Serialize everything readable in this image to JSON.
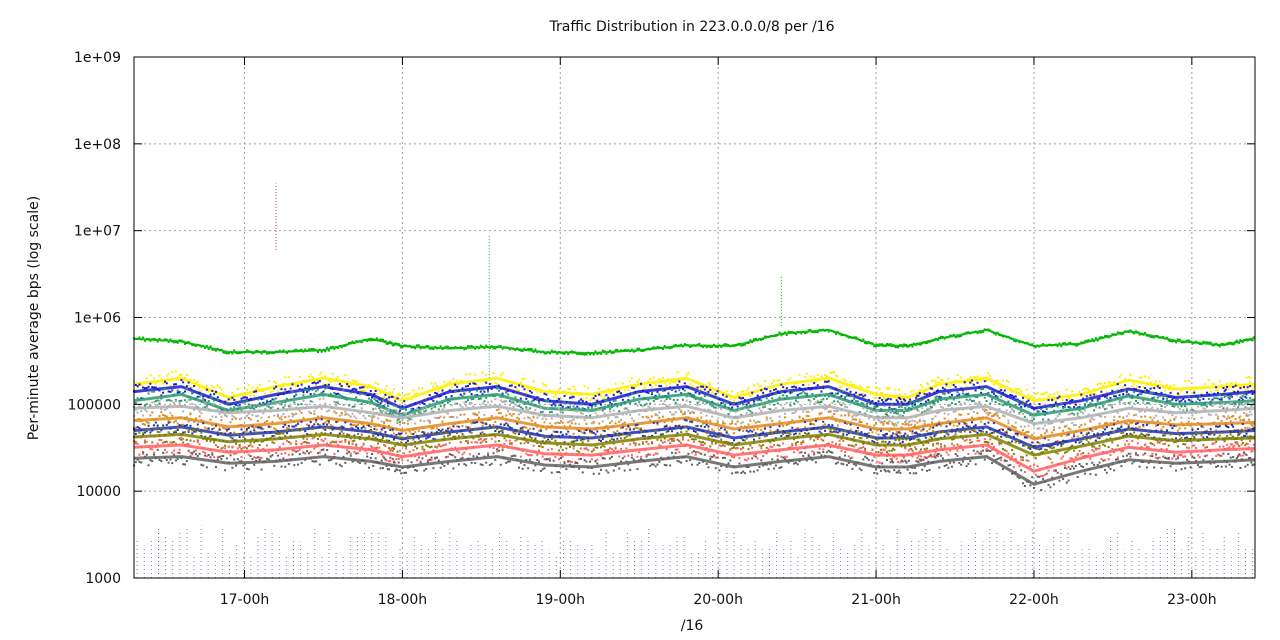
{
  "chart_data": {
    "type": "scatter",
    "title": "Traffic Distribution in 223.0.0.0/8 per /16",
    "xlabel": "/16",
    "ylabel": "Per-minute average bps (log scale)",
    "y_scale": "log",
    "ylim": [
      1000,
      1000000000
    ],
    "y_ticks": [
      "1000",
      "10000",
      "100000",
      "1e+06",
      "1e+07",
      "1e+08",
      "1e+09"
    ],
    "x_unit": "hour",
    "xlim": [
      16.3,
      23.4
    ],
    "x_ticks": [
      {
        "value": 17,
        "label": "17-00h"
      },
      {
        "value": 18,
        "label": "18-00h"
      },
      {
        "value": 19,
        "label": "19-00h"
      },
      {
        "value": 20,
        "label": "20-00h"
      },
      {
        "value": 21,
        "label": "21-00h"
      },
      {
        "value": 22,
        "label": "22-00h"
      },
      {
        "value": 23,
        "label": "23-00h"
      }
    ],
    "grid": true,
    "legend": "none",
    "series": [
      {
        "color": "#00b400",
        "values": [
          [
            16.3,
            570000
          ],
          [
            16.6,
            530000
          ],
          [
            16.9,
            400000
          ],
          [
            17.2,
            400000
          ],
          [
            17.5,
            420000
          ],
          [
            17.8,
            570000
          ],
          [
            18.0,
            470000
          ],
          [
            18.3,
            440000
          ],
          [
            18.6,
            460000
          ],
          [
            18.9,
            400000
          ],
          [
            19.2,
            390000
          ],
          [
            19.5,
            420000
          ],
          [
            19.8,
            480000
          ],
          [
            20.1,
            470000
          ],
          [
            20.4,
            650000
          ],
          [
            20.7,
            720000
          ],
          [
            21.0,
            480000
          ],
          [
            21.2,
            470000
          ],
          [
            21.4,
            570000
          ],
          [
            21.7,
            720000
          ],
          [
            22.0,
            470000
          ],
          [
            22.3,
            500000
          ],
          [
            22.6,
            700000
          ],
          [
            22.9,
            540000
          ],
          [
            23.2,
            480000
          ],
          [
            23.4,
            580000
          ]
        ]
      },
      {
        "color": "#ffee00",
        "values": [
          [
            16.3,
            170000
          ],
          [
            16.6,
            200000
          ],
          [
            16.9,
            120000
          ],
          [
            17.2,
            160000
          ],
          [
            17.5,
            200000
          ],
          [
            17.8,
            160000
          ],
          [
            18.0,
            110000
          ],
          [
            18.3,
            170000
          ],
          [
            18.6,
            200000
          ],
          [
            18.9,
            140000
          ],
          [
            19.2,
            130000
          ],
          [
            19.5,
            170000
          ],
          [
            19.8,
            200000
          ],
          [
            20.1,
            120000
          ],
          [
            20.4,
            170000
          ],
          [
            20.7,
            200000
          ],
          [
            21.0,
            130000
          ],
          [
            21.2,
            120000
          ],
          [
            21.4,
            170000
          ],
          [
            21.7,
            200000
          ],
          [
            22.0,
            110000
          ],
          [
            22.3,
            130000
          ],
          [
            22.6,
            190000
          ],
          [
            22.9,
            150000
          ],
          [
            23.2,
            160000
          ],
          [
            23.4,
            170000
          ]
        ]
      },
      {
        "color": "#1a1ad2",
        "values": [
          [
            16.3,
            140000
          ],
          [
            16.6,
            160000
          ],
          [
            16.9,
            100000
          ],
          [
            17.2,
            130000
          ],
          [
            17.5,
            160000
          ],
          [
            17.8,
            130000
          ],
          [
            18.0,
            90000
          ],
          [
            18.3,
            140000
          ],
          [
            18.6,
            160000
          ],
          [
            18.9,
            110000
          ],
          [
            19.2,
            100000
          ],
          [
            19.5,
            140000
          ],
          [
            19.8,
            160000
          ],
          [
            20.1,
            100000
          ],
          [
            20.4,
            140000
          ],
          [
            20.7,
            160000
          ],
          [
            21.0,
            100000
          ],
          [
            21.2,
            100000
          ],
          [
            21.4,
            140000
          ],
          [
            21.7,
            160000
          ],
          [
            22.0,
            90000
          ],
          [
            22.3,
            110000
          ],
          [
            22.6,
            150000
          ],
          [
            22.9,
            120000
          ],
          [
            23.2,
            130000
          ],
          [
            23.4,
            140000
          ]
        ]
      },
      {
        "color": "#2a9a6e",
        "values": [
          [
            16.3,
            110000
          ],
          [
            16.6,
            130000
          ],
          [
            16.9,
            85000
          ],
          [
            17.2,
            105000
          ],
          [
            17.5,
            130000
          ],
          [
            17.8,
            105000
          ],
          [
            18.0,
            75000
          ],
          [
            18.3,
            115000
          ],
          [
            18.6,
            130000
          ],
          [
            18.9,
            90000
          ],
          [
            19.2,
            85000
          ],
          [
            19.5,
            115000
          ],
          [
            19.8,
            130000
          ],
          [
            20.1,
            85000
          ],
          [
            20.4,
            115000
          ],
          [
            20.7,
            130000
          ],
          [
            21.0,
            85000
          ],
          [
            21.2,
            85000
          ],
          [
            21.4,
            115000
          ],
          [
            21.7,
            130000
          ],
          [
            22.0,
            75000
          ],
          [
            22.3,
            90000
          ],
          [
            22.6,
            125000
          ],
          [
            22.9,
            100000
          ],
          [
            23.2,
            105000
          ],
          [
            23.4,
            110000
          ]
        ]
      },
      {
        "color": "#b0b0b0",
        "values": [
          [
            16.3,
            90000
          ],
          [
            16.6,
            95000
          ],
          [
            16.9,
            80000
          ],
          [
            17.2,
            85000
          ],
          [
            17.5,
            95000
          ],
          [
            17.8,
            80000
          ],
          [
            18.0,
            70000
          ],
          [
            18.3,
            85000
          ],
          [
            18.6,
            95000
          ],
          [
            18.9,
            75000
          ],
          [
            19.2,
            70000
          ],
          [
            19.5,
            85000
          ],
          [
            19.8,
            95000
          ],
          [
            20.1,
            70000
          ],
          [
            20.4,
            85000
          ],
          [
            20.7,
            95000
          ],
          [
            21.0,
            70000
          ],
          [
            21.2,
            70000
          ],
          [
            21.4,
            85000
          ],
          [
            21.7,
            95000
          ],
          [
            22.0,
            60000
          ],
          [
            22.3,
            70000
          ],
          [
            22.6,
            90000
          ],
          [
            22.9,
            80000
          ],
          [
            23.2,
            85000
          ],
          [
            23.4,
            90000
          ]
        ]
      },
      {
        "color": "#e08a20",
        "values": [
          [
            16.3,
            65000
          ],
          [
            16.6,
            70000
          ],
          [
            16.9,
            55000
          ],
          [
            17.2,
            60000
          ],
          [
            17.5,
            70000
          ],
          [
            17.8,
            60000
          ],
          [
            18.0,
            50000
          ],
          [
            18.3,
            60000
          ],
          [
            18.6,
            70000
          ],
          [
            18.9,
            55000
          ],
          [
            19.2,
            52000
          ],
          [
            19.5,
            60000
          ],
          [
            19.8,
            70000
          ],
          [
            20.1,
            52000
          ],
          [
            20.4,
            60000
          ],
          [
            20.7,
            70000
          ],
          [
            21.0,
            52000
          ],
          [
            21.2,
            52000
          ],
          [
            21.4,
            60000
          ],
          [
            21.7,
            70000
          ],
          [
            22.0,
            40000
          ],
          [
            22.3,
            50000
          ],
          [
            22.6,
            65000
          ],
          [
            22.9,
            58000
          ],
          [
            23.2,
            60000
          ],
          [
            23.4,
            62000
          ]
        ]
      },
      {
        "color": "#2233aa",
        "values": [
          [
            16.3,
            50000
          ],
          [
            16.6,
            55000
          ],
          [
            16.9,
            44000
          ],
          [
            17.2,
            48000
          ],
          [
            17.5,
            55000
          ],
          [
            17.8,
            48000
          ],
          [
            18.0,
            40000
          ],
          [
            18.3,
            48000
          ],
          [
            18.6,
            55000
          ],
          [
            18.9,
            43000
          ],
          [
            19.2,
            41000
          ],
          [
            19.5,
            48000
          ],
          [
            19.8,
            55000
          ],
          [
            20.1,
            41000
          ],
          [
            20.4,
            48000
          ],
          [
            20.7,
            55000
          ],
          [
            21.0,
            41000
          ],
          [
            21.2,
            41000
          ],
          [
            21.4,
            48000
          ],
          [
            21.7,
            55000
          ],
          [
            22.0,
            32000
          ],
          [
            22.3,
            40000
          ],
          [
            22.6,
            52000
          ],
          [
            22.9,
            46000
          ],
          [
            23.2,
            48000
          ],
          [
            23.4,
            50000
          ]
        ]
      },
      {
        "color": "#808000",
        "values": [
          [
            16.3,
            42000
          ],
          [
            16.6,
            45000
          ],
          [
            16.9,
            37000
          ],
          [
            17.2,
            40000
          ],
          [
            17.5,
            45000
          ],
          [
            17.8,
            40000
          ],
          [
            18.0,
            34000
          ],
          [
            18.3,
            40000
          ],
          [
            18.6,
            45000
          ],
          [
            18.9,
            36000
          ],
          [
            19.2,
            34000
          ],
          [
            19.5,
            40000
          ],
          [
            19.8,
            45000
          ],
          [
            20.1,
            34000
          ],
          [
            20.4,
            40000
          ],
          [
            20.7,
            45000
          ],
          [
            21.0,
            34000
          ],
          [
            21.2,
            34000
          ],
          [
            21.4,
            40000
          ],
          [
            21.7,
            45000
          ],
          [
            22.0,
            26000
          ],
          [
            22.3,
            33000
          ],
          [
            22.6,
            43000
          ],
          [
            22.9,
            38000
          ],
          [
            23.2,
            40000
          ],
          [
            23.4,
            41000
          ]
        ]
      },
      {
        "color": "#ff6060",
        "values": [
          [
            16.3,
            32000
          ],
          [
            16.6,
            34000
          ],
          [
            16.9,
            28000
          ],
          [
            17.2,
            30000
          ],
          [
            17.5,
            34000
          ],
          [
            17.8,
            30000
          ],
          [
            18.0,
            25000
          ],
          [
            18.3,
            30000
          ],
          [
            18.6,
            34000
          ],
          [
            18.9,
            27000
          ],
          [
            19.2,
            26000
          ],
          [
            19.5,
            30000
          ],
          [
            19.8,
            34000
          ],
          [
            20.1,
            26000
          ],
          [
            20.4,
            30000
          ],
          [
            20.7,
            34000
          ],
          [
            21.0,
            26000
          ],
          [
            21.2,
            26000
          ],
          [
            21.4,
            30000
          ],
          [
            21.7,
            34000
          ],
          [
            22.0,
            17000
          ],
          [
            22.3,
            24000
          ],
          [
            22.6,
            32000
          ],
          [
            22.9,
            28000
          ],
          [
            23.2,
            30000
          ],
          [
            23.4,
            31000
          ]
        ]
      },
      {
        "color": "#606060",
        "values": [
          [
            16.3,
            24000
          ],
          [
            16.6,
            25000
          ],
          [
            16.9,
            21000
          ],
          [
            17.2,
            22000
          ],
          [
            17.5,
            25000
          ],
          [
            17.8,
            22000
          ],
          [
            18.0,
            19000
          ],
          [
            18.3,
            22000
          ],
          [
            18.6,
            25000
          ],
          [
            18.9,
            20000
          ],
          [
            19.2,
            19000
          ],
          [
            19.5,
            22000
          ],
          [
            19.8,
            25000
          ],
          [
            20.1,
            19000
          ],
          [
            20.4,
            22000
          ],
          [
            20.7,
            25000
          ],
          [
            21.0,
            19000
          ],
          [
            21.2,
            19000
          ],
          [
            21.4,
            22000
          ],
          [
            21.7,
            25000
          ],
          [
            22.0,
            12000
          ],
          [
            22.3,
            17000
          ],
          [
            22.6,
            23000
          ],
          [
            22.9,
            21000
          ],
          [
            23.2,
            22000
          ],
          [
            23.4,
            23000
          ]
        ]
      }
    ],
    "spikes": [
      {
        "x": 17.2,
        "from": 6000000,
        "to": 35000000,
        "color": "#c0206a"
      },
      {
        "x": 18.55,
        "from": 200000,
        "to": 9000000,
        "color": "#2a9a6e"
      },
      {
        "x": 20.4,
        "from": 800000,
        "to": 3000000,
        "color": "#00b400"
      }
    ],
    "low_band": {
      "x": [
        16.3,
        23.4
      ],
      "from": 1000,
      "to": 4000,
      "color": "#444488"
    }
  }
}
